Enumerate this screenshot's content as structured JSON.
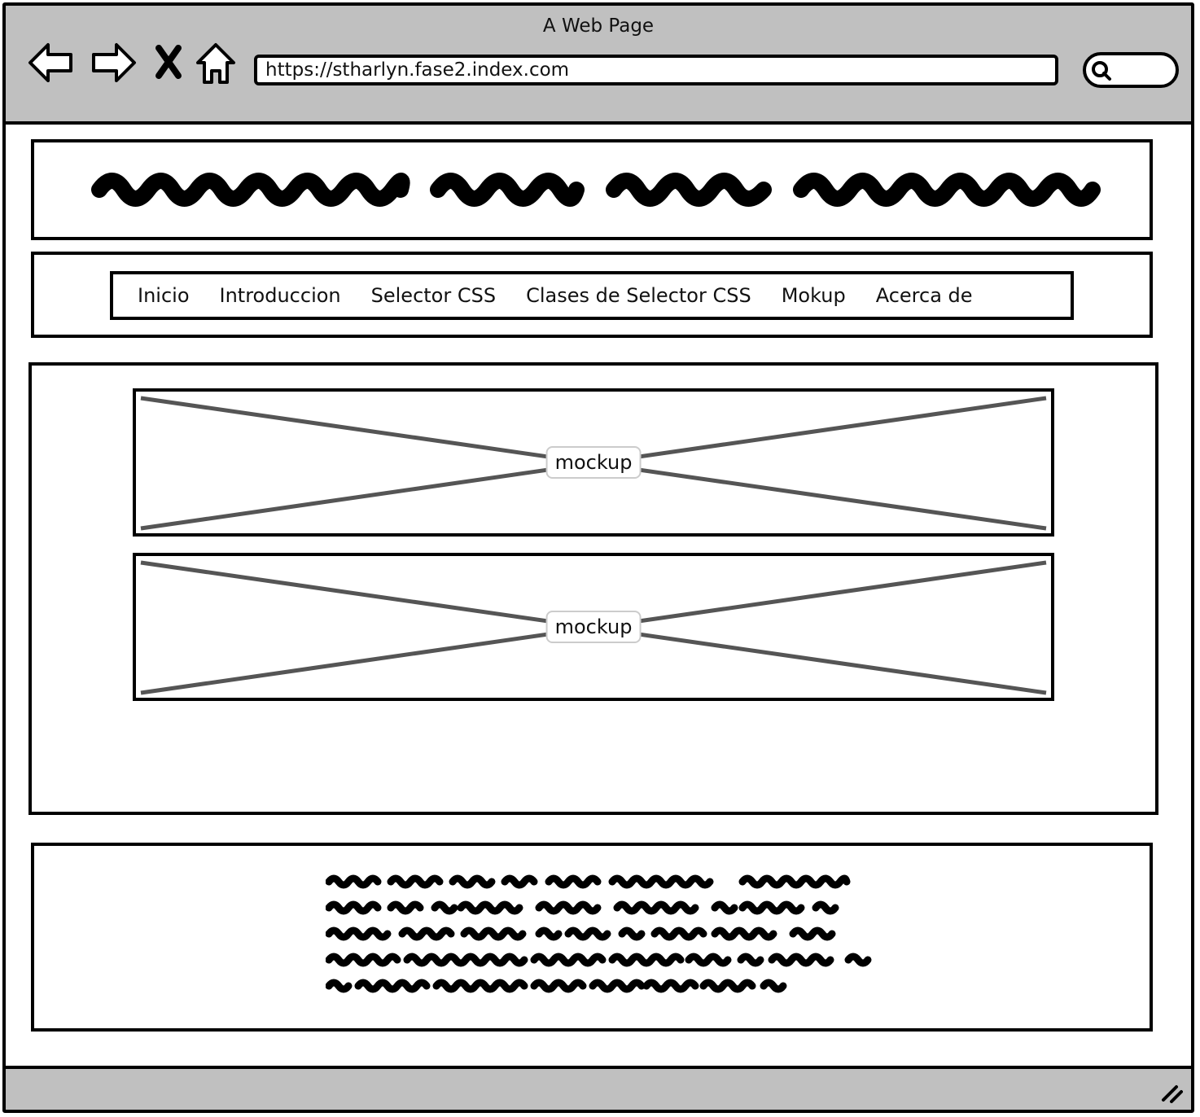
{
  "window": {
    "title": "A Web Page"
  },
  "browser": {
    "url": "https://stharlyn.fase2.index.com",
    "nav": [
      "back-icon",
      "forward-icon",
      "close-icon",
      "home-icon"
    ],
    "search": {
      "icon": "search-icon",
      "value": ""
    }
  },
  "nav_menu": {
    "items": [
      {
        "label": "Inicio"
      },
      {
        "label": "Introduccion"
      },
      {
        "label": "Selector CSS"
      },
      {
        "label": "Clases de Selector CSS"
      },
      {
        "label": "Mokup"
      },
      {
        "label": "Acerca de"
      }
    ]
  },
  "content": {
    "mockups": [
      {
        "label": "mockup"
      },
      {
        "label": "mockup"
      }
    ]
  },
  "colors": {
    "chrome": "#c0c0c0",
    "stroke": "#000000",
    "placeholder_x": "#555555"
  }
}
